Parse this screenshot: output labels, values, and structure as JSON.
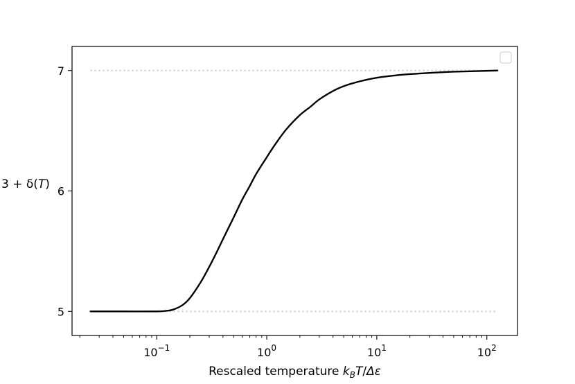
{
  "chart_data": {
    "type": "line",
    "xscale": "log",
    "xlim": [
      0.017,
      190
    ],
    "ylim": [
      4.8,
      7.2
    ],
    "xlabel": {
      "prefix": "Rescaled temperature ",
      "k": "k",
      "B": "B",
      "T": "T",
      "slash": "/",
      "delta_epsilon": "Δε"
    },
    "ylabel": {
      "prefix": "3 + δ(",
      "T": "T",
      "suffix": ")"
    },
    "x_ticks": [
      {
        "value": 0.1,
        "base": "10",
        "exp": "−1"
      },
      {
        "value": 1,
        "base": "10",
        "exp": "0"
      },
      {
        "value": 10,
        "base": "10",
        "exp": "1"
      },
      {
        "value": 100,
        "base": "10",
        "exp": "2"
      }
    ],
    "y_ticks": [
      {
        "value": 5,
        "label": "5"
      },
      {
        "value": 6,
        "label": "6"
      },
      {
        "value": 7,
        "label": "7"
      }
    ],
    "reference_lines": [
      {
        "y": 7,
        "x_range": [
          0.025,
          125
        ],
        "style": "dotted",
        "color": "#cccccc"
      },
      {
        "y": 5,
        "x_range": [
          0.025,
          125
        ],
        "style": "dotted",
        "color": "#cccccc"
      }
    ],
    "series": [
      {
        "color": "#000000",
        "points": [
          [
            0.025,
            5.0
          ],
          [
            0.05,
            5.0
          ],
          [
            0.1,
            5.0
          ],
          [
            0.12,
            5.004
          ],
          [
            0.14,
            5.014
          ],
          [
            0.17,
            5.05
          ],
          [
            0.2,
            5.11
          ],
          [
            0.25,
            5.24
          ],
          [
            0.3,
            5.37
          ],
          [
            0.35,
            5.49
          ],
          [
            0.4,
            5.6
          ],
          [
            0.5,
            5.78
          ],
          [
            0.6,
            5.93
          ],
          [
            0.7,
            6.04
          ],
          [
            0.8,
            6.14
          ],
          [
            1.0,
            6.28
          ],
          [
            1.2,
            6.39
          ],
          [
            1.5,
            6.51
          ],
          [
            2.0,
            6.63
          ],
          [
            2.5,
            6.7
          ],
          [
            3.0,
            6.76
          ],
          [
            4.0,
            6.83
          ],
          [
            5.0,
            6.87
          ],
          [
            7.0,
            6.91
          ],
          [
            10.0,
            6.94
          ],
          [
            15.0,
            6.96
          ],
          [
            20.0,
            6.97
          ],
          [
            30.0,
            6.98
          ],
          [
            50.0,
            6.99
          ],
          [
            125.0,
            7.0
          ]
        ]
      }
    ],
    "legend": {
      "placement": "top-right",
      "entries": []
    },
    "grid": false
  }
}
